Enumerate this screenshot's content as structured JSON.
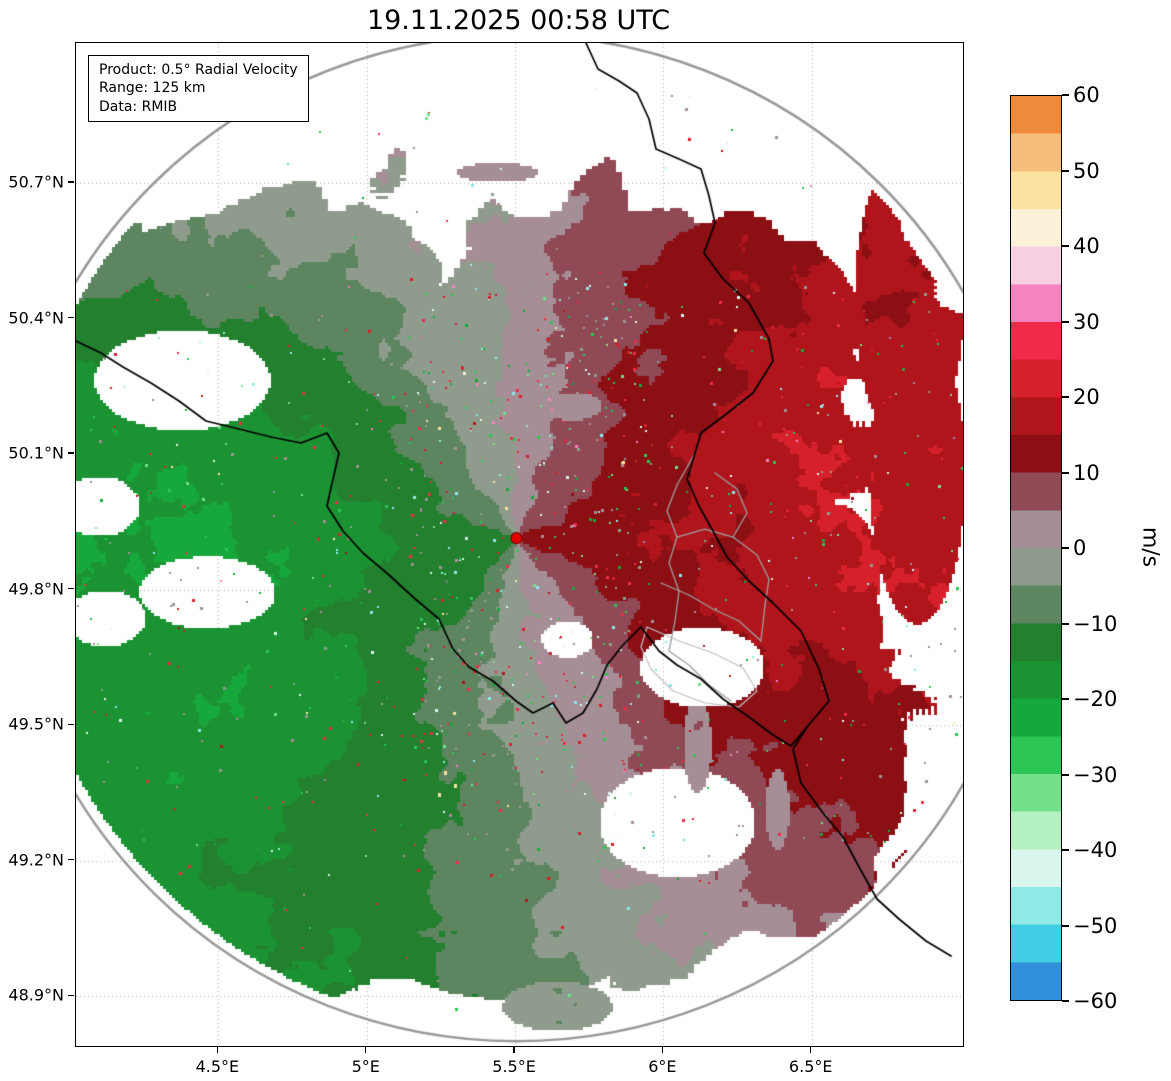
{
  "title": "19.11.2025 00:58 UTC",
  "info_box": {
    "lines": [
      "Product: 0.5° Radial Velocity",
      "Range: 125 km",
      "Data: RMIB"
    ]
  },
  "axes": {
    "x_ticks": [
      {
        "value": 4.5,
        "label": "4.5°E"
      },
      {
        "value": 5.0,
        "label": "5°E"
      },
      {
        "value": 5.5,
        "label": "5.5°E"
      },
      {
        "value": 6.0,
        "label": "6°E"
      },
      {
        "value": 6.5,
        "label": "6.5°E"
      }
    ],
    "y_ticks": [
      {
        "value": 50.7,
        "label": "50.7°N"
      },
      {
        "value": 50.4,
        "label": "50.4°N"
      },
      {
        "value": 50.1,
        "label": "50.1°N"
      },
      {
        "value": 49.8,
        "label": "49.8°N"
      },
      {
        "value": 49.5,
        "label": "49.5°N"
      },
      {
        "value": 49.2,
        "label": "49.2°N"
      },
      {
        "value": 48.9,
        "label": "48.9°N"
      }
    ],
    "lon_range": [
      4.02,
      7.01
    ],
    "lat_range": [
      48.79,
      51.01
    ]
  },
  "colorbar": {
    "label": "m/s",
    "min": -60,
    "max": 60,
    "ticks": [
      {
        "value": 60,
        "label": "60"
      },
      {
        "value": 50,
        "label": "50"
      },
      {
        "value": 40,
        "label": "40"
      },
      {
        "value": 30,
        "label": "30"
      },
      {
        "value": 20,
        "label": "20"
      },
      {
        "value": 10,
        "label": "10"
      },
      {
        "value": 0,
        "label": "0"
      },
      {
        "value": -10,
        "label": "−10"
      },
      {
        "value": -20,
        "label": "−20"
      },
      {
        "value": -30,
        "label": "−30"
      },
      {
        "value": -40,
        "label": "−40"
      },
      {
        "value": -50,
        "label": "−50"
      },
      {
        "value": -60,
        "label": "−60"
      }
    ],
    "bins": [
      {
        "from": 55,
        "to": 60,
        "color": "#ef8a3d"
      },
      {
        "from": 50,
        "to": 55,
        "color": "#f6bd7d"
      },
      {
        "from": 45,
        "to": 50,
        "color": "#fae3a0"
      },
      {
        "from": 40,
        "to": 45,
        "color": "#fbf0d8"
      },
      {
        "from": 35,
        "to": 40,
        "color": "#f8cfe0"
      },
      {
        "from": 30,
        "to": 35,
        "color": "#f583c0"
      },
      {
        "from": 25,
        "to": 30,
        "color": "#ef2b49"
      },
      {
        "from": 20,
        "to": 25,
        "color": "#d6202b"
      },
      {
        "from": 15,
        "to": 20,
        "color": "#b0151c"
      },
      {
        "from": 10,
        "to": 15,
        "color": "#8c0f14"
      },
      {
        "from": 5,
        "to": 10,
        "color": "#8f4a56"
      },
      {
        "from": 0,
        "to": 5,
        "color": "#a68e96"
      },
      {
        "from": -5,
        "to": 0,
        "color": "#8f9c8d"
      },
      {
        "from": -10,
        "to": -5,
        "color": "#5d855f"
      },
      {
        "from": -15,
        "to": -10,
        "color": "#22802f"
      },
      {
        "from": -20,
        "to": -15,
        "color": "#1b9333"
      },
      {
        "from": -25,
        "to": -20,
        "color": "#17a83b"
      },
      {
        "from": -30,
        "to": -25,
        "color": "#2bc653"
      },
      {
        "from": -35,
        "to": -30,
        "color": "#74e089"
      },
      {
        "from": -40,
        "to": -35,
        "color": "#b5f0c0"
      },
      {
        "from": -45,
        "to": -40,
        "color": "#d9f7ec"
      },
      {
        "from": -50,
        "to": -45,
        "color": "#8fe9e6"
      },
      {
        "from": -55,
        "to": -50,
        "color": "#41cde4"
      },
      {
        "from": -60,
        "to": -55,
        "color": "#2f8fd8"
      }
    ]
  },
  "radar": {
    "center_lon": 5.505,
    "center_lat": 49.914,
    "range_km": 125,
    "dot_color": "#e50000"
  },
  "map_colors": {
    "grid": "#b0b0b0",
    "range_ring": "#999999",
    "country_border": "#000000",
    "district_border": "#9e9e9e",
    "commune_border": "#c0c0c0",
    "no_data": "#ffffff"
  },
  "chart_data": {
    "type": "heatmap",
    "title": "19.11.2025 00:58 UTC",
    "product": "0.5° Radial Velocity",
    "data_source": "RMIB",
    "units": "m/s",
    "value_range": [
      -60,
      60
    ],
    "colorbar_ticks": [
      60,
      50,
      40,
      30,
      20,
      10,
      0,
      -10,
      -20,
      -30,
      -40,
      -50,
      -60
    ],
    "x_axis": {
      "ticks": [
        "4.5°E",
        "5°E",
        "5.5°E",
        "6°E",
        "6.5°E"
      ],
      "range_deg_e": [
        4.02,
        7.01
      ]
    },
    "y_axis": {
      "ticks": [
        "50.7°N",
        "50.4°N",
        "50.1°N",
        "49.8°N",
        "49.5°N",
        "49.2°N",
        "48.9°N"
      ],
      "range_deg_n": [
        48.79,
        51.01
      ]
    },
    "radar_site": {
      "lon_deg_e": 5.505,
      "lat_deg_n": 49.914,
      "range_km": 125
    },
    "grid": "dotted",
    "legend_position": "right-colorbar",
    "pattern_summary": "Zero-isodop runs roughly north-south through the radar site: inbound radial velocities (green, about -10 to -25 m/s) fill the western half of the 125 km range ring, outbound velocities (dark red, about +10 to +20 m/s) fill the eastern half, indicating broadly westerly flow. A mauve/gray near-zero transition band curves through the center; echoes are absent in the far north and far south of the ring.",
    "sampled_velocities": {
      "lons_deg_e": [
        4.5,
        5.0,
        5.5,
        6.0,
        6.5
      ],
      "lats_deg_n": [
        50.4,
        50.1,
        49.8,
        49.5,
        49.2
      ],
      "values_mps": [
        [
          -6,
          -5,
          2,
          null,
          null
        ],
        [
          -12,
          -9,
          4,
          15,
          14
        ],
        [
          -16,
          -13,
          -2,
          14,
          15
        ],
        [
          -18,
          -15,
          -4,
          6,
          14
        ],
        [
          null,
          -14,
          -7,
          null,
          null
        ]
      ]
    }
  }
}
